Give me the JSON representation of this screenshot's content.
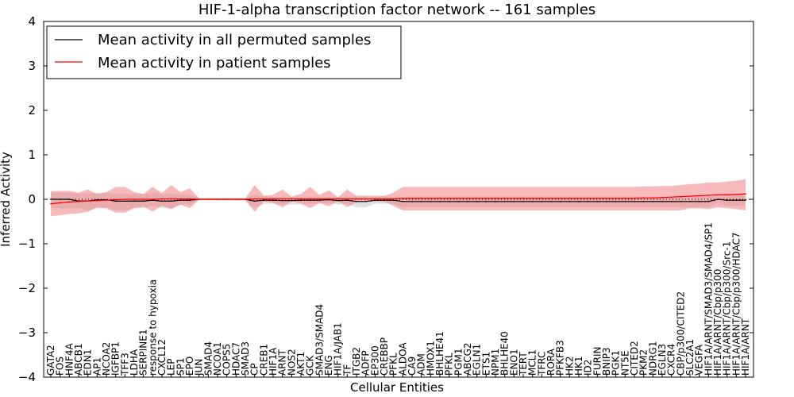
{
  "chart_data": {
    "type": "line",
    "title": "HIF-1-alpha transcription factor network -- 161 samples",
    "xlabel": "Cellular Entities",
    "ylabel": "Inferred Activity",
    "ylim": [
      -4,
      4
    ],
    "yticks": [
      -4,
      -3,
      -2,
      -1,
      0,
      1,
      2,
      3,
      4
    ],
    "ytick_labels": [
      "−4",
      "−3",
      "−2",
      "−1",
      "0",
      "1",
      "2",
      "3",
      "4"
    ],
    "legend_position": "top-left",
    "categories": [
      "GATA2",
      "FOS",
      "HNF4A",
      "ABCB1",
      "EDN1",
      "AP1",
      "NCOA2",
      "IGFBP1",
      "TFF3",
      "LDHA",
      "SERPINE1",
      "response to hypoxia",
      "CXCL12",
      "LEP",
      "SP1",
      "EPO",
      "JUN",
      "SMAD4",
      "NCOA1",
      "COPS5",
      "HDAC7",
      "SMAD3",
      "CP",
      "CREB1",
      "HIF1A",
      "ARNT",
      "NOS2",
      "AKT1",
      "GCK",
      "SMAD3/SMAD4",
      "ENG",
      "HIF1A/JAB1",
      "TF",
      "ITGB2",
      "ADFP",
      "EP300",
      "CREBBP",
      "PFKL",
      "ALDOA",
      "CA9",
      "ADM",
      "HMOX1",
      "BHLHE41",
      "PFKL",
      "PGM1",
      "ABCG2",
      "EGLN1",
      "ETS1",
      "NPM1",
      "BHLHE40",
      "ENO1",
      "TERT",
      "MCL1",
      "TFRC",
      "RORA",
      "PFKFB3",
      "HK2",
      "HK1",
      "ID2",
      "FURIN",
      "BNIP3",
      "PGK1",
      "NT5E",
      "CITED2",
      "PKM2",
      "NDRG1",
      "EGLN3",
      "CXCR4",
      "CBP/p300/CITED2",
      "SLC2A1",
      "VEGFA",
      "HIF1A/ARNT/SMAD3/SMAD4/SP1",
      "HIF1A/ARNT/Cbp/p300",
      "HIF1A/ARNT/Cbp/p300/Src-1",
      "HIF1A/ARNT/Cbp/p300/HDAC7",
      "HIF1A/ARNT"
    ],
    "series": [
      {
        "name": "Mean activity in all permuted samples",
        "color": "#000000",
        "band_color": "#bbbbbb",
        "values": [
          0.0,
          0.0,
          0.0,
          -0.04,
          -0.04,
          -0.01,
          -0.01,
          -0.04,
          -0.04,
          -0.04,
          -0.04,
          -0.02,
          -0.04,
          -0.04,
          -0.02,
          -0.02,
          0.0,
          0.0,
          0.0,
          0.0,
          0.0,
          0.0,
          -0.04,
          -0.02,
          -0.02,
          -0.03,
          -0.03,
          -0.02,
          -0.02,
          -0.02,
          -0.01,
          -0.03,
          -0.02,
          -0.05,
          -0.05,
          -0.02,
          -0.02,
          -0.02,
          -0.05,
          -0.05,
          -0.05,
          -0.05,
          -0.05,
          -0.05,
          -0.05,
          -0.05,
          -0.05,
          -0.05,
          -0.05,
          -0.05,
          -0.05,
          -0.05,
          -0.05,
          -0.05,
          -0.05,
          -0.05,
          -0.05,
          -0.05,
          -0.05,
          -0.05,
          -0.05,
          -0.05,
          -0.05,
          -0.05,
          -0.05,
          -0.05,
          -0.05,
          -0.05,
          -0.05,
          -0.05,
          -0.05,
          -0.05,
          0.0,
          -0.02,
          -0.02,
          -0.02
        ],
        "lower": [
          -0.2,
          -0.2,
          -0.2,
          -0.2,
          -0.25,
          -0.2,
          -0.2,
          -0.25,
          -0.25,
          -0.2,
          -0.2,
          -0.15,
          -0.2,
          -0.2,
          -0.12,
          -0.12,
          -0.02,
          -0.02,
          -0.02,
          -0.03,
          -0.03,
          -0.04,
          -0.2,
          -0.1,
          -0.1,
          -0.12,
          -0.12,
          -0.1,
          -0.1,
          -0.1,
          -0.08,
          -0.12,
          -0.1,
          -0.18,
          -0.18,
          -0.1,
          -0.1,
          -0.1,
          -0.18,
          -0.18,
          -0.18,
          -0.18,
          -0.18,
          -0.18,
          -0.18,
          -0.18,
          -0.18,
          -0.18,
          -0.18,
          -0.18,
          -0.18,
          -0.18,
          -0.18,
          -0.18,
          -0.18,
          -0.18,
          -0.18,
          -0.18,
          -0.18,
          -0.18,
          -0.18,
          -0.18,
          -0.18,
          -0.18,
          -0.18,
          -0.18,
          -0.18,
          -0.18,
          -0.18,
          -0.18,
          -0.18,
          -0.18,
          -0.08,
          -0.15,
          -0.15,
          -0.15
        ],
        "upper": [
          0.15,
          0.15,
          0.15,
          0.12,
          0.12,
          0.15,
          0.15,
          0.12,
          0.12,
          0.12,
          0.12,
          0.15,
          0.12,
          0.12,
          0.1,
          0.1,
          0.03,
          0.03,
          0.03,
          0.03,
          0.03,
          0.03,
          0.1,
          0.06,
          0.06,
          0.05,
          0.05,
          0.06,
          0.06,
          0.06,
          0.06,
          0.05,
          0.06,
          0.06,
          0.06,
          0.06,
          0.06,
          0.06,
          0.06,
          0.06,
          0.06,
          0.06,
          0.06,
          0.06,
          0.06,
          0.06,
          0.06,
          0.06,
          0.06,
          0.06,
          0.06,
          0.06,
          0.06,
          0.06,
          0.06,
          0.06,
          0.06,
          0.06,
          0.06,
          0.06,
          0.06,
          0.06,
          0.06,
          0.06,
          0.06,
          0.06,
          0.06,
          0.06,
          0.06,
          0.06,
          0.06,
          0.06,
          0.08,
          0.1,
          0.1,
          0.1
        ]
      },
      {
        "name": "Mean activity in patient samples",
        "color": "#ff0000",
        "band_color": "#f08080",
        "values": [
          -0.1,
          -0.08,
          -0.06,
          -0.05,
          -0.04,
          -0.03,
          -0.02,
          -0.01,
          0.0,
          0.0,
          0.0,
          0.0,
          0.01,
          0.01,
          0.01,
          0.01,
          0.0,
          0.0,
          0.0,
          0.0,
          0.0,
          0.0,
          0.01,
          0.01,
          0.01,
          0.01,
          0.01,
          0.01,
          0.01,
          0.01,
          0.01,
          0.01,
          0.01,
          0.01,
          0.01,
          0.01,
          0.01,
          0.01,
          0.02,
          0.02,
          0.02,
          0.02,
          0.02,
          0.02,
          0.02,
          0.02,
          0.02,
          0.02,
          0.02,
          0.02,
          0.02,
          0.02,
          0.02,
          0.02,
          0.02,
          0.02,
          0.02,
          0.02,
          0.02,
          0.02,
          0.02,
          0.02,
          0.02,
          0.02,
          0.03,
          0.03,
          0.04,
          0.05,
          0.06,
          0.07,
          0.08,
          0.09,
          0.1,
          0.1,
          0.11,
          0.12
        ],
        "lower": [
          -0.38,
          -0.36,
          -0.33,
          -0.32,
          -0.28,
          -0.18,
          -0.2,
          -0.3,
          -0.3,
          -0.2,
          -0.16,
          -0.28,
          -0.14,
          -0.22,
          -0.12,
          -0.2,
          -0.01,
          -0.01,
          -0.01,
          -0.01,
          -0.01,
          -0.02,
          -0.28,
          -0.05,
          -0.08,
          -0.18,
          -0.04,
          -0.1,
          -0.2,
          -0.08,
          -0.16,
          -0.04,
          -0.18,
          -0.06,
          -0.05,
          -0.05,
          -0.05,
          -0.15,
          -0.25,
          -0.25,
          -0.25,
          -0.25,
          -0.25,
          -0.25,
          -0.25,
          -0.25,
          -0.25,
          -0.25,
          -0.25,
          -0.25,
          -0.25,
          -0.25,
          -0.25,
          -0.25,
          -0.25,
          -0.25,
          -0.25,
          -0.25,
          -0.25,
          -0.25,
          -0.25,
          -0.25,
          -0.25,
          -0.25,
          -0.25,
          -0.25,
          -0.25,
          -0.25,
          -0.25,
          -0.2,
          -0.2,
          -0.22,
          -0.18,
          -0.2,
          -0.22,
          -0.25
        ],
        "upper": [
          0.18,
          0.19,
          0.19,
          0.15,
          0.22,
          0.12,
          0.16,
          0.28,
          0.28,
          0.16,
          0.12,
          0.28,
          0.14,
          0.32,
          0.16,
          0.25,
          0.02,
          0.02,
          0.02,
          0.02,
          0.02,
          0.02,
          0.32,
          0.08,
          0.1,
          0.22,
          0.06,
          0.12,
          0.28,
          0.1,
          0.2,
          0.05,
          0.22,
          0.08,
          0.08,
          0.08,
          0.08,
          0.15,
          0.28,
          0.28,
          0.28,
          0.28,
          0.28,
          0.28,
          0.28,
          0.28,
          0.28,
          0.28,
          0.28,
          0.28,
          0.28,
          0.28,
          0.28,
          0.28,
          0.28,
          0.28,
          0.28,
          0.28,
          0.28,
          0.28,
          0.28,
          0.28,
          0.28,
          0.28,
          0.29,
          0.29,
          0.3,
          0.3,
          0.32,
          0.34,
          0.35,
          0.38,
          0.38,
          0.4,
          0.42,
          0.45
        ]
      }
    ]
  }
}
